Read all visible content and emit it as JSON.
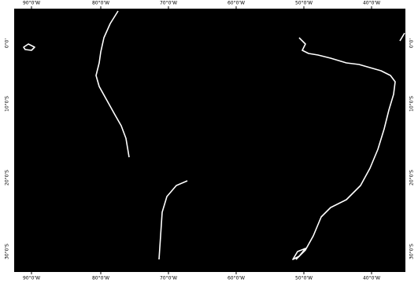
{
  "map": {
    "top_labels": [
      "90°0'W",
      "80°0'W",
      "70°0'W",
      "60°0'W",
      "50°0'W",
      "40°0'W"
    ],
    "bottom_labels": [
      "90°0'W",
      "80°0'W",
      "70°0'W",
      "60°0'W",
      "50°0'W",
      "40°0'W"
    ],
    "left_labels": [
      "0°0'",
      "10°0'S",
      "20°0'S",
      "30°0'S"
    ],
    "right_labels": [
      "0°0'",
      "10°0'S",
      "20°0'S",
      "30°0'S"
    ]
  }
}
